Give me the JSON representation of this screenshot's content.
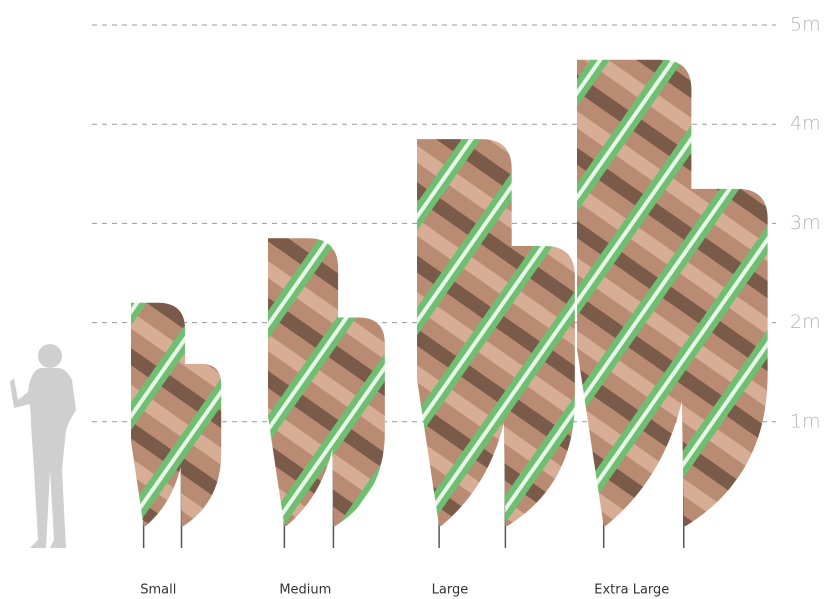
{
  "chart_data": {
    "type": "bar",
    "categories": [
      "Small",
      "Medium",
      "Large",
      "Extra Large"
    ],
    "values": [
      2.2,
      2.85,
      3.85,
      4.65
    ],
    "ylim": [
      0,
      5
    ],
    "yticks": [
      {
        "value": 1,
        "label": "1m"
      },
      {
        "value": 2,
        "label": "2m"
      },
      {
        "value": 3,
        "label": "3m"
      },
      {
        "value": 4,
        "label": "4m"
      },
      {
        "value": 5,
        "label": "5m"
      }
    ],
    "grid": true
  }
}
